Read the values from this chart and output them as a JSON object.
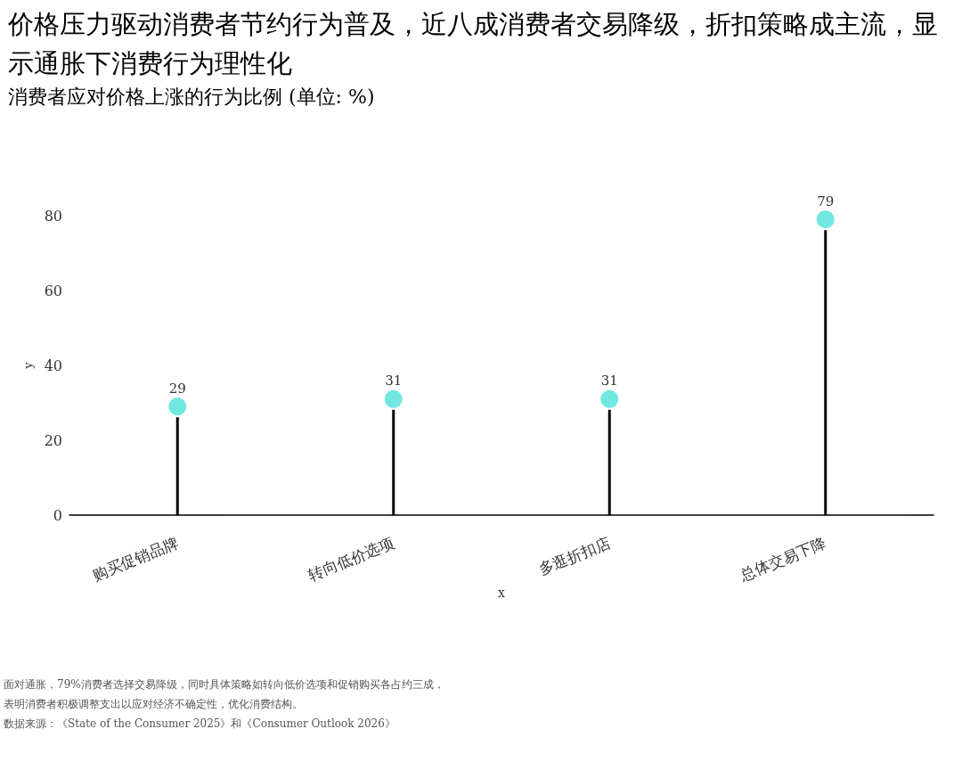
{
  "chart_data": {
    "type": "lollipop",
    "title": "价格压力驱动消费者节约行为普及，近八成消费者交易降级，折扣策略成主流，显示通胀下消费行为理性化",
    "subtitle": "消费者应对价格上涨的行为比例 (单位: %)",
    "xlabel": "x",
    "ylabel": "y",
    "categories": [
      "购买促销品牌",
      "转向低价选项",
      "多逛折扣店",
      "总体交易下降"
    ],
    "series": [
      {
        "color": "#70e8e0",
        "values": [
          29,
          31,
          31,
          79
        ]
      }
    ],
    "ylim": [
      0,
      80
    ],
    "yticks": [
      0,
      20,
      40,
      60,
      80
    ],
    "data_labels": true,
    "marker": "circle",
    "grid": false,
    "annotations": [
      "面对通胀，79%消费者选择交易降级，同时具体策略如转向低价选项和促销购买各占约三成，",
      "表明消费者积极调整支出以应对经济不确定性，优化消费结构。",
      "数据来源：《State of the Consumer 2025》和《Consumer Outlook 2026》"
    ]
  }
}
